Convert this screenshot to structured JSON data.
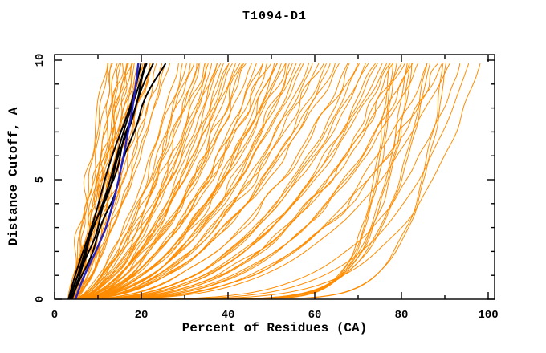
{
  "title": "T1094-D1",
  "chart_data": {
    "type": "line",
    "title": "T1094-D1",
    "xlabel": "Percent of Residues (CA)",
    "ylabel": "Distance Cutoff, A",
    "xlim": [
      0,
      100
    ],
    "ylim": [
      0,
      10
    ],
    "grid": false,
    "legend": "none",
    "background": "#ffffff",
    "axis_color": "#000000",
    "x_major_ticks": [
      0,
      20,
      40,
      60,
      80,
      100
    ],
    "x_minor_ticks": [
      10,
      30,
      50,
      70,
      90
    ],
    "y_major_ticks": [
      0,
      5,
      10
    ],
    "y_minor_ticks": [
      1,
      2,
      3,
      4,
      6,
      7,
      8,
      9
    ],
    "x_tick_labels": [
      "0",
      "20",
      "40",
      "60",
      "80",
      "100"
    ],
    "y_tick_labels": [
      "0",
      "5",
      "10"
    ],
    "curve_y_max": 9.85,
    "series": [
      {
        "name": "predicted-models",
        "color": "#ff8c00",
        "encoding": "parametric",
        "formula": "x(y) = x_start + (x_top - x_start) * (y / 9.85)^shape",
        "curve_format": [
          "x_start",
          "x_top",
          "shape",
          "replicas"
        ],
        "curves": [
          [
            3.2,
            12,
            0.95,
            2
          ],
          [
            3.4,
            13.5,
            0.9,
            2
          ],
          [
            3.6,
            15,
            0.85,
            3
          ],
          [
            3.8,
            16,
            0.8,
            2
          ],
          [
            4.0,
            17,
            0.9,
            3
          ],
          [
            4.2,
            18,
            0.75,
            2
          ],
          [
            3.5,
            19,
            0.85,
            3
          ],
          [
            4.4,
            20,
            0.8,
            2
          ],
          [
            4.6,
            21,
            0.7,
            3
          ],
          [
            3.9,
            22.5,
            0.75,
            2
          ],
          [
            4.1,
            24,
            0.7,
            2
          ],
          [
            4.3,
            26,
            0.72,
            2
          ],
          [
            4.5,
            29,
            0.62,
            2
          ],
          [
            4.0,
            31,
            0.58,
            3
          ],
          [
            4.6,
            33,
            0.6,
            3
          ],
          [
            4.2,
            35,
            0.55,
            3
          ],
          [
            4.8,
            37,
            0.58,
            3
          ],
          [
            4.4,
            39,
            0.52,
            3
          ],
          [
            5.0,
            41,
            0.56,
            3
          ],
          [
            4.6,
            43,
            0.5,
            3
          ],
          [
            4.2,
            45,
            0.54,
            2
          ],
          [
            4.8,
            47,
            0.5,
            2
          ],
          [
            4.4,
            49,
            0.52,
            3
          ],
          [
            5.0,
            51,
            0.48,
            3
          ],
          [
            4.6,
            53,
            0.5,
            3
          ],
          [
            4.2,
            55,
            0.46,
            3
          ],
          [
            4.8,
            57,
            0.48,
            2
          ],
          [
            4.4,
            59,
            0.45,
            2
          ],
          [
            5.0,
            61,
            0.47,
            2
          ],
          [
            4.6,
            63,
            0.44,
            2
          ],
          [
            4.2,
            65,
            0.46,
            2
          ],
          [
            4.8,
            68,
            0.42,
            2
          ],
          [
            4.4,
            70,
            0.38,
            2
          ],
          [
            5.0,
            72,
            0.4,
            2
          ],
          [
            4.6,
            74,
            0.36,
            2
          ],
          [
            4.2,
            76,
            0.38,
            2
          ],
          [
            4.8,
            78,
            0.34,
            2
          ],
          [
            4.4,
            80,
            0.36,
            2
          ],
          [
            5.0,
            82,
            0.32,
            2
          ],
          [
            4.6,
            84,
            0.34,
            1
          ],
          [
            4.2,
            86,
            0.3,
            1
          ],
          [
            4.8,
            89,
            0.32,
            2
          ],
          [
            4.4,
            91,
            0.3,
            1
          ],
          [
            5.0,
            93.5,
            0.22,
            1
          ],
          [
            4.6,
            95.5,
            0.2,
            1
          ],
          [
            4.2,
            98,
            0.18,
            1
          ],
          [
            4.8,
            78,
            0.08,
            3
          ],
          [
            4.4,
            82,
            0.1,
            3
          ],
          [
            5.0,
            86,
            0.12,
            2
          ],
          [
            4.6,
            90,
            0.09,
            2
          ]
        ]
      },
      {
        "name": "reference-models",
        "color": "#000000",
        "encoding": "points",
        "y_levels": [
          0,
          0.5,
          1,
          1.5,
          2,
          3,
          4,
          5,
          6,
          7,
          8,
          9,
          9.85
        ],
        "curves": [
          [
            3.2,
            4.0,
            4.9,
            5.8,
            6.6,
            8.2,
            9.9,
            11.7,
            13.6,
            15.4,
            17.1,
            18.6,
            19.9
          ],
          [
            3.5,
            4.4,
            5.4,
            6.4,
            7.3,
            9.0,
            10.8,
            12.6,
            14.5,
            16.2,
            17.8,
            19.3,
            20.6
          ],
          [
            3.8,
            4.8,
            5.9,
            6.9,
            7.9,
            9.8,
            11.6,
            13.4,
            15.1,
            16.7,
            18.3,
            20.0,
            21.4
          ],
          [
            3.4,
            4.3,
            5.3,
            6.3,
            7.2,
            9.1,
            11.2,
            13.2,
            15.0,
            16.6,
            18.5,
            20.8,
            22.6
          ],
          [
            4.0,
            5.1,
            6.3,
            7.5,
            8.6,
            10.8,
            12.9,
            14.7,
            16.4,
            18.1,
            20.0,
            22.8,
            25.3
          ]
        ]
      },
      {
        "name": "highlight-model",
        "color": "#2222cc",
        "encoding": "points",
        "y_levels": [
          0,
          0.5,
          1,
          1.5,
          2,
          3,
          4,
          5,
          6,
          7,
          8,
          9,
          9.85
        ],
        "curves": [
          [
            4.8,
            5.8,
            6.9,
            8.2,
            9.5,
            11.8,
            13.4,
            14.8,
            16.0,
            17.0,
            17.9,
            18.7,
            19.3
          ]
        ]
      }
    ]
  }
}
